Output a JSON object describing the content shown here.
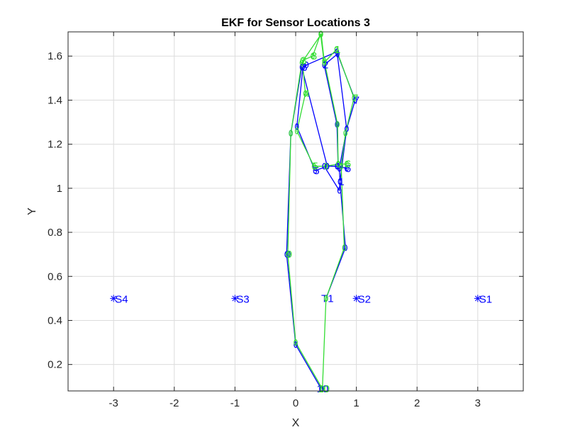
{
  "chart_data": {
    "type": "line",
    "title": "EKF for Sensor Locations 3",
    "xlabel": "X",
    "ylabel": "Y",
    "xlim": [
      -3.75,
      3.75
    ],
    "ylim": [
      0.08,
      1.71
    ],
    "xticks": [
      -3,
      -2,
      -1,
      0,
      1,
      2,
      3
    ],
    "yticks": [
      0.2,
      0.4,
      0.6,
      0.8,
      1,
      1.2,
      1.4,
      1.6
    ],
    "grid": true,
    "colors": {
      "true_path": "#0000ff",
      "ekf_path": "#33dd33",
      "sensors": "#0000ff"
    },
    "sensors": [
      {
        "label": "S1",
        "x": 3.0,
        "y": 0.5
      },
      {
        "label": "S2",
        "x": 1.0,
        "y": 0.5
      },
      {
        "label": "S3",
        "x": -1.0,
        "y": 0.5
      },
      {
        "label": "S4",
        "x": -3.0,
        "y": 0.5
      }
    ],
    "series": [
      {
        "color": "#0000ff",
        "points": [
          {
            "x": 0.5,
            "y": 0.5,
            "label": "T1"
          },
          {
            "x": 0.82,
            "y": 0.73,
            "label": ""
          },
          {
            "x": 0.73,
            "y": 1.03,
            "label": "1"
          },
          {
            "x": 0.84,
            "y": 1.27,
            "label": ""
          },
          {
            "x": 0.98,
            "y": 1.4,
            "label": "7"
          },
          {
            "x": 0.69,
            "y": 1.61,
            "label": ""
          },
          {
            "x": 0.47,
            "y": 1.56,
            "label": "2"
          },
          {
            "x": 0.68,
            "y": 1.29,
            "label": ""
          },
          {
            "x": 0.7,
            "y": 1.1,
            "label": ""
          },
          {
            "x": 0.84,
            "y": 1.09,
            "label": "6"
          },
          {
            "x": 0.68,
            "y": 1.1,
            "label": ""
          },
          {
            "x": 0.52,
            "y": 1.1,
            "label": ""
          },
          {
            "x": 0.32,
            "y": 1.08,
            "label": "5"
          },
          {
            "x": 0.02,
            "y": 1.28,
            "label": ""
          },
          {
            "x": 0.12,
            "y": 1.55,
            "label": "3"
          },
          {
            "x": 0.18,
            "y": 1.56,
            "label": ""
          },
          {
            "x": 0.68,
            "y": 1.62,
            "label": ""
          },
          {
            "x": 0.84,
            "y": 1.27,
            "label": ""
          },
          {
            "x": 0.72,
            "y": 1.09,
            "label": ""
          },
          {
            "x": 0.73,
            "y": 1.03,
            "label": ""
          },
          {
            "x": 0.72,
            "y": 0.99,
            "label": ""
          },
          {
            "x": 0.47,
            "y": 1.1,
            "label": ""
          },
          {
            "x": 0.52,
            "y": 1.1,
            "label": ""
          },
          {
            "x": 0.1,
            "y": 1.55,
            "label": ""
          },
          {
            "x": -0.08,
            "y": 1.25,
            "label": ""
          },
          {
            "x": -0.15,
            "y": 0.7,
            "label": "9"
          },
          {
            "x": 0.0,
            "y": 0.29,
            "label": ""
          },
          {
            "x": 0.42,
            "y": 0.09,
            "label": "10"
          }
        ]
      },
      {
        "color": "#33dd33",
        "points": [
          {
            "x": 0.5,
            "y": 0.5,
            "label": ""
          },
          {
            "x": 0.8,
            "y": 0.73,
            "label": ""
          },
          {
            "x": 0.75,
            "y": 1.1,
            "label": ""
          },
          {
            "x": 0.82,
            "y": 1.25,
            "label": ""
          },
          {
            "x": 0.96,
            "y": 1.41,
            "label": "7"
          },
          {
            "x": 0.67,
            "y": 1.63,
            "label": "1"
          },
          {
            "x": 0.47,
            "y": 1.57,
            "label": ""
          },
          {
            "x": 0.41,
            "y": 1.7,
            "label": ""
          },
          {
            "x": 0.28,
            "y": 1.6,
            "label": "8"
          },
          {
            "x": 0.11,
            "y": 1.58,
            "label": "3"
          },
          {
            "x": 0.16,
            "y": 1.43,
            "label": "4"
          },
          {
            "x": 0.02,
            "y": 1.26,
            "label": ""
          },
          {
            "x": 0.3,
            "y": 1.1,
            "label": "5"
          },
          {
            "x": 0.5,
            "y": 1.1,
            "label": ""
          },
          {
            "x": 0.7,
            "y": 1.11,
            "label": ""
          },
          {
            "x": 0.84,
            "y": 1.11,
            "label": "6"
          },
          {
            "x": 0.7,
            "y": 1.11,
            "label": ""
          },
          {
            "x": 0.69,
            "y": 1.29,
            "label": ""
          },
          {
            "x": 0.47,
            "y": 1.58,
            "label": ""
          },
          {
            "x": 0.42,
            "y": 1.7,
            "label": ""
          },
          {
            "x": 0.1,
            "y": 1.57,
            "label": ""
          },
          {
            "x": -0.08,
            "y": 1.25,
            "label": ""
          },
          {
            "x": -0.13,
            "y": 0.7,
            "label": "9"
          },
          {
            "x": 0.0,
            "y": 0.3,
            "label": ""
          },
          {
            "x": 0.44,
            "y": 0.09,
            "label": "10"
          },
          {
            "x": 0.5,
            "y": 0.5,
            "label": ""
          }
        ]
      }
    ]
  }
}
